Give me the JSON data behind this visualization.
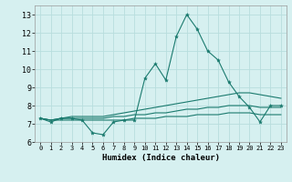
{
  "xlabel": "Humidex (Indice chaleur)",
  "background_color": "#d6f0f0",
  "grid_color": "#b8dede",
  "line_color": "#1a7a6e",
  "x_values": [
    0,
    1,
    2,
    3,
    4,
    5,
    6,
    7,
    8,
    9,
    10,
    11,
    12,
    13,
    14,
    15,
    16,
    17,
    18,
    19,
    20,
    21,
    22,
    23
  ],
  "main_line": [
    7.3,
    7.1,
    7.3,
    7.3,
    7.2,
    6.5,
    6.4,
    7.1,
    7.2,
    7.2,
    9.5,
    10.3,
    9.4,
    11.8,
    13.0,
    12.2,
    11.0,
    10.5,
    9.3,
    8.5,
    7.9,
    7.1,
    8.0,
    8.0
  ],
  "line2": [
    7.3,
    7.2,
    7.3,
    7.4,
    7.4,
    7.4,
    7.4,
    7.5,
    7.6,
    7.7,
    7.8,
    7.9,
    8.0,
    8.1,
    8.2,
    8.3,
    8.4,
    8.5,
    8.6,
    8.7,
    8.7,
    8.6,
    8.5,
    8.4
  ],
  "line3": [
    7.3,
    7.2,
    7.3,
    7.3,
    7.3,
    7.3,
    7.3,
    7.4,
    7.4,
    7.5,
    7.5,
    7.6,
    7.6,
    7.7,
    7.8,
    7.8,
    7.9,
    7.9,
    8.0,
    8.0,
    8.0,
    7.9,
    7.9,
    7.9
  ],
  "line4": [
    7.3,
    7.2,
    7.2,
    7.2,
    7.2,
    7.2,
    7.2,
    7.2,
    7.2,
    7.3,
    7.3,
    7.3,
    7.4,
    7.4,
    7.4,
    7.5,
    7.5,
    7.5,
    7.6,
    7.6,
    7.6,
    7.5,
    7.5,
    7.5
  ],
  "ylim": [
    6,
    13.5
  ],
  "yticks": [
    6,
    7,
    8,
    9,
    10,
    11,
    12,
    13
  ],
  "xticks": [
    0,
    1,
    2,
    3,
    4,
    5,
    6,
    7,
    8,
    9,
    10,
    11,
    12,
    13,
    14,
    15,
    16,
    17,
    18,
    19,
    20,
    21,
    22,
    23
  ]
}
